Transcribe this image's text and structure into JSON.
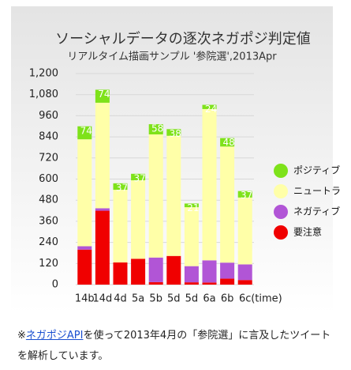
{
  "chart_data": {
    "type": "stacked_bar",
    "title": "ソーシャルデータの逐次ネガポジ判定値",
    "subtitle": "リアルタイム描画サンプル '参院選',2013Apr",
    "x_label": "(time)",
    "categories": [
      "14b",
      "14d",
      "4d",
      "5a",
      "5b",
      "5d",
      "5d",
      "6a",
      "6b",
      "6c"
    ],
    "series": [
      {
        "name": "ポジティブ",
        "color": "#7ee21a",
        "values": [
          74,
          74,
          37,
          37,
          58,
          38,
          21,
          24,
          48,
          37
        ]
      },
      {
        "name": "ニュートラ",
        "color": "#ffffa8",
        "values": [
          608,
          600,
          413,
          446,
          700,
          683,
          335,
          860,
          660,
          380
        ]
      },
      {
        "name": "ネガティブ",
        "color": "#b155d6",
        "values": [
          19,
          14,
          0,
          0,
          140,
          0,
          92,
          126,
          91,
          89
        ]
      },
      {
        "name": "要注意",
        "color": "#f00000",
        "values": [
          199,
          420,
          126,
          147,
          14,
          163,
          13,
          12,
          34,
          26
        ]
      }
    ],
    "ylim": [
      0,
      1200
    ],
    "yticks": [
      0,
      120,
      240,
      360,
      480,
      600,
      720,
      840,
      960,
      {
        "value": 1080,
        "label": "1,080"
      },
      {
        "value": 1200,
        "label": "1,200"
      }
    ],
    "grid": true
  },
  "footer": {
    "prefix": "※",
    "link": "ネガポジAPI",
    "text": "を使って2013年4月の「参院選」に言及したツイートを解析しています。"
  }
}
